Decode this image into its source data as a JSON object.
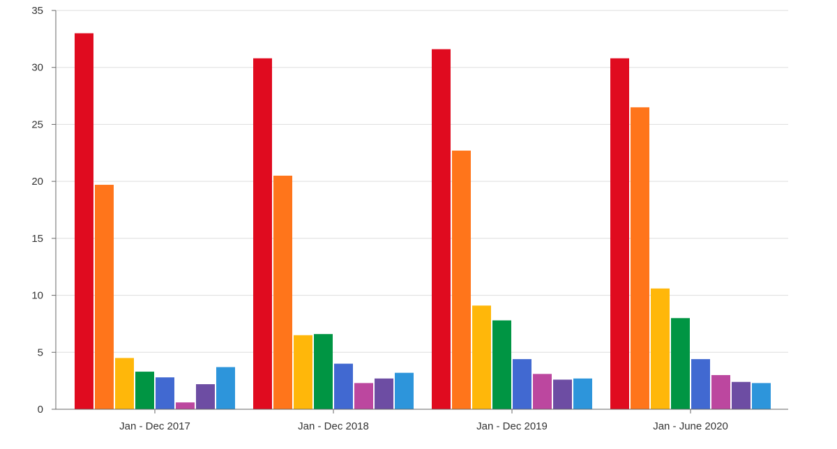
{
  "chart_data": {
    "type": "bar",
    "title": "",
    "xlabel": "",
    "ylabel": "",
    "categories": [
      "Jan - Dec 2017",
      "Jan - Dec 2018",
      "Jan - Dec 2019",
      "Jan - June 2020"
    ],
    "ylim": [
      0,
      35
    ],
    "yticks": [
      0,
      5,
      10,
      15,
      20,
      25,
      30,
      35
    ],
    "grid": true,
    "legend": "none",
    "series": [
      {
        "color": "#e00b1f",
        "values": [
          33.0,
          30.8,
          31.6,
          30.8
        ]
      },
      {
        "color": "#ff751b",
        "values": [
          19.7,
          20.5,
          22.7,
          26.5
        ]
      },
      {
        "color": "#ffb70a",
        "values": [
          4.5,
          6.5,
          9.1,
          10.6
        ]
      },
      {
        "color": "#009543",
        "values": [
          3.3,
          6.6,
          7.8,
          8.0
        ]
      },
      {
        "color": "#4169d1",
        "values": [
          2.8,
          4.0,
          4.4,
          4.4
        ]
      },
      {
        "color": "#bc479f",
        "values": [
          0.6,
          2.3,
          3.1,
          3.0
        ]
      },
      {
        "color": "#6d4da3",
        "values": [
          2.2,
          2.7,
          2.6,
          2.4
        ]
      },
      {
        "color": "#2d95db",
        "values": [
          3.7,
          3.2,
          2.7,
          2.3
        ]
      }
    ]
  }
}
